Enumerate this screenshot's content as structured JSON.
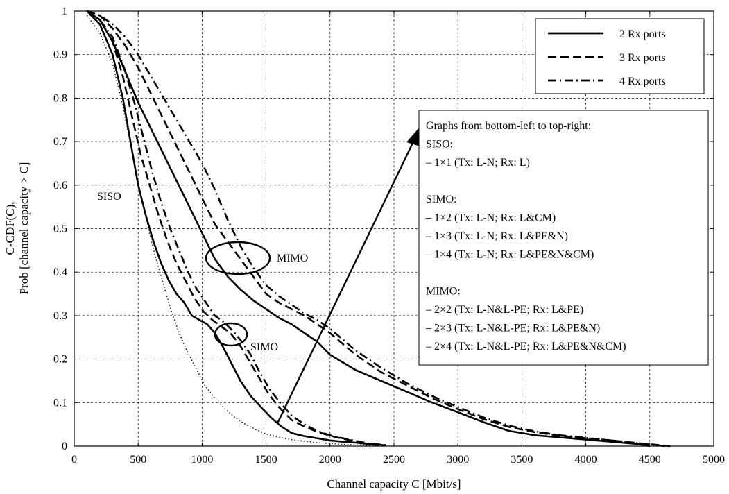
{
  "chart_data": {
    "type": "line",
    "xlabel": "Channel capacity C [Mbit/s]",
    "ylabel_line1": "C-CDF(C),",
    "ylabel_line2": "Prob [channel capacity > C]",
    "xlim": [
      0,
      5000
    ],
    "ylim": [
      0,
      1
    ],
    "x_ticks": [
      0,
      500,
      1000,
      1500,
      2000,
      2500,
      3000,
      3500,
      4000,
      4500,
      5000
    ],
    "y_ticks": [
      0,
      0.1,
      0.2,
      0.3,
      0.4,
      0.5,
      0.6,
      0.7,
      0.8,
      0.9,
      1
    ],
    "grid": true,
    "legend_position": "top-right",
    "legend": [
      {
        "label": "2 Rx ports",
        "style": "solid"
      },
      {
        "label": "3 Rx ports",
        "style": "dashed"
      },
      {
        "label": "4 Rx ports",
        "style": "dash-dot"
      }
    ],
    "series": [
      {
        "group": "SISO",
        "style": "dotted",
        "x": [
          100,
          200,
          300,
          380,
          450,
          520,
          580,
          640,
          700,
          760,
          820,
          880,
          950,
          1020,
          1100,
          1180,
          1260,
          1340,
          1420,
          1500,
          1600,
          1700,
          1800,
          1900,
          2000,
          2100,
          2200,
          2300,
          2400
        ],
        "y": [
          0.99,
          0.95,
          0.88,
          0.78,
          0.68,
          0.58,
          0.5,
          0.43,
          0.37,
          0.31,
          0.26,
          0.22,
          0.18,
          0.14,
          0.11,
          0.085,
          0.065,
          0.05,
          0.038,
          0.028,
          0.02,
          0.015,
          0.011,
          0.008,
          0.006,
          0.004,
          0.003,
          0.002,
          0.001
        ]
      },
      {
        "group": "SIMO",
        "style": "solid",
        "x": [
          100,
          200,
          300,
          380,
          440,
          500,
          560,
          620,
          680,
          740,
          800,
          860,
          920,
          980,
          1040,
          1100,
          1160,
          1230,
          1300,
          1380,
          1460,
          1540,
          1620,
          1700,
          1800,
          1900,
          2000,
          2100,
          2200,
          2300,
          2380
        ],
        "y": [
          1.0,
          0.97,
          0.9,
          0.8,
          0.7,
          0.6,
          0.53,
          0.47,
          0.42,
          0.38,
          0.35,
          0.33,
          0.3,
          0.29,
          0.28,
          0.26,
          0.23,
          0.19,
          0.15,
          0.115,
          0.09,
          0.065,
          0.045,
          0.03,
          0.023,
          0.018,
          0.013,
          0.01,
          0.008,
          0.005,
          0.002
        ]
      },
      {
        "group": "SIMO",
        "style": "dashed",
        "x": [
          100,
          200,
          300,
          380,
          450,
          520,
          590,
          660,
          730,
          800,
          870,
          940,
          1010,
          1080,
          1150,
          1220,
          1290,
          1360,
          1440,
          1520,
          1600,
          1700,
          1800,
          1900,
          2000,
          2100,
          2200,
          2300,
          2420
        ],
        "y": [
          1.0,
          0.98,
          0.93,
          0.85,
          0.76,
          0.67,
          0.6,
          0.53,
          0.47,
          0.42,
          0.38,
          0.34,
          0.31,
          0.29,
          0.275,
          0.26,
          0.235,
          0.2,
          0.16,
          0.12,
          0.09,
          0.06,
          0.045,
          0.033,
          0.024,
          0.017,
          0.011,
          0.006,
          0.002
        ]
      },
      {
        "group": "SIMO",
        "style": "dash-dot",
        "x": [
          100,
          200,
          300,
          390,
          470,
          540,
          610,
          680,
          750,
          820,
          890,
          960,
          1030,
          1100,
          1170,
          1240,
          1310,
          1380,
          1450,
          1530,
          1610,
          1700,
          1800,
          1900,
          2000,
          2100,
          2200,
          2300,
          2450
        ],
        "y": [
          1.0,
          0.98,
          0.94,
          0.87,
          0.79,
          0.71,
          0.63,
          0.56,
          0.5,
          0.45,
          0.4,
          0.36,
          0.33,
          0.3,
          0.285,
          0.265,
          0.24,
          0.21,
          0.17,
          0.13,
          0.1,
          0.07,
          0.05,
          0.035,
          0.025,
          0.018,
          0.012,
          0.006,
          0.002
        ]
      },
      {
        "group": "MIMO",
        "style": "solid",
        "x": [
          100,
          200,
          300,
          400,
          500,
          600,
          700,
          800,
          900,
          1000,
          1100,
          1200,
          1300,
          1400,
          1500,
          1600,
          1700,
          1800,
          1900,
          2000,
          2200,
          2400,
          2600,
          2800,
          3000,
          3200,
          3400,
          3600,
          3800,
          4000,
          4200,
          4400,
          4500
        ],
        "y": [
          1.0,
          0.98,
          0.93,
          0.86,
          0.79,
          0.73,
          0.67,
          0.61,
          0.55,
          0.49,
          0.43,
          0.39,
          0.36,
          0.335,
          0.315,
          0.295,
          0.28,
          0.26,
          0.24,
          0.21,
          0.175,
          0.15,
          0.125,
          0.1,
          0.078,
          0.055,
          0.035,
          0.025,
          0.02,
          0.015,
          0.01,
          0.005,
          0.0
        ]
      },
      {
        "group": "MIMO",
        "style": "dashed",
        "x": [
          100,
          200,
          300,
          400,
          500,
          600,
          700,
          800,
          900,
          1000,
          1100,
          1200,
          1300,
          1400,
          1500,
          1600,
          1700,
          1800,
          1900,
          2000,
          2200,
          2400,
          2600,
          2800,
          3000,
          3200,
          3400,
          3600,
          3800,
          4000,
          4200,
          4400,
          4660
        ],
        "y": [
          1.0,
          0.99,
          0.96,
          0.92,
          0.87,
          0.81,
          0.75,
          0.69,
          0.63,
          0.57,
          0.51,
          0.47,
          0.43,
          0.39,
          0.35,
          0.33,
          0.315,
          0.3,
          0.28,
          0.26,
          0.21,
          0.17,
          0.14,
          0.11,
          0.085,
          0.062,
          0.044,
          0.032,
          0.024,
          0.018,
          0.013,
          0.007,
          0.0
        ]
      },
      {
        "group": "MIMO",
        "style": "dash-dot",
        "x": [
          100,
          200,
          300,
          400,
          500,
          600,
          700,
          800,
          900,
          1000,
          1100,
          1200,
          1300,
          1400,
          1500,
          1600,
          1700,
          1800,
          1900,
          2000,
          2200,
          2400,
          2600,
          2800,
          3000,
          3200,
          3400,
          3600,
          3800,
          4000,
          4200,
          4400,
          4620
        ],
        "y": [
          1.0,
          0.99,
          0.97,
          0.94,
          0.9,
          0.85,
          0.8,
          0.75,
          0.7,
          0.65,
          0.59,
          0.52,
          0.46,
          0.41,
          0.37,
          0.345,
          0.325,
          0.305,
          0.29,
          0.27,
          0.22,
          0.18,
          0.145,
          0.115,
          0.09,
          0.066,
          0.047,
          0.034,
          0.025,
          0.019,
          0.013,
          0.007,
          0.0
        ]
      }
    ],
    "annotations": {
      "siso_label": "SISO",
      "simo_label": "SIMO",
      "mimo_label": "MIMO",
      "info_box": [
        "Graphs from bottom-left to top-right:",
        "SISO:",
        "– 1×1 (Tx: L-N; Rx: L)",
        "",
        "SIMO:",
        "– 1×2 (Tx: L-N; Rx: L&CM)",
        "– 1×3 (Tx: L-N; Rx: L&PE&N)",
        "– 1×4 (Tx: L-N; Rx: L&PE&N&CM)",
        "",
        "MIMO:",
        "– 2×2 (Tx: L-N&L-PE; Rx: L&PE)",
        "– 2×3 (Tx: L-N&L-PE; Rx: L&PE&N)",
        "– 2×4 (Tx: L-N&L-PE; Rx: L&PE&N&CM)"
      ]
    }
  }
}
